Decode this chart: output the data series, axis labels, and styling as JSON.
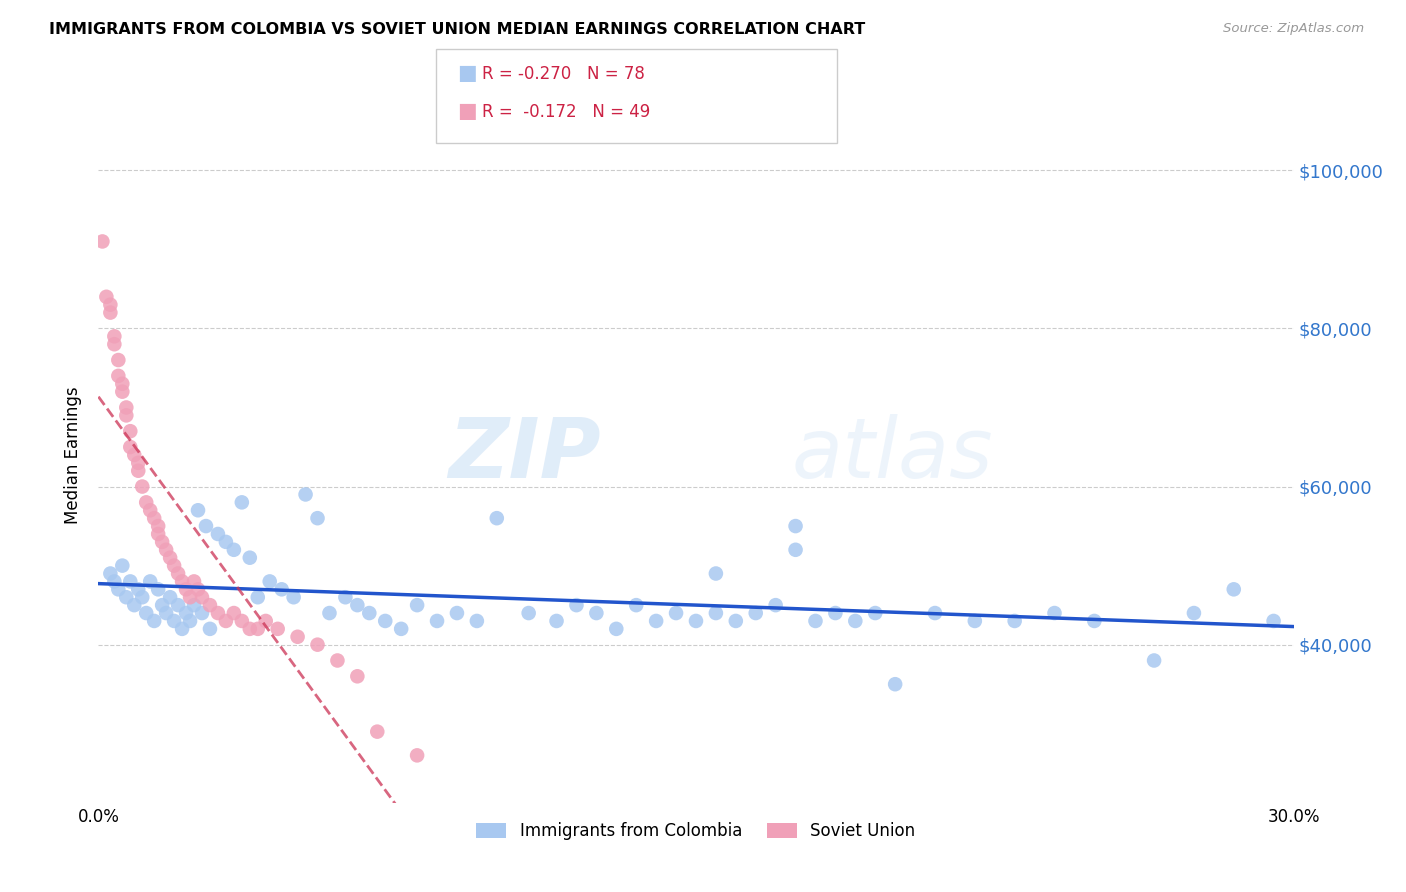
{
  "title": "IMMIGRANTS FROM COLOMBIA VS SOVIET UNION MEDIAN EARNINGS CORRELATION CHART",
  "source": "Source: ZipAtlas.com",
  "ylabel": "Median Earnings",
  "yticks": [
    40000,
    60000,
    80000,
    100000
  ],
  "xlim": [
    0.0,
    0.3
  ],
  "ylim": [
    20000,
    108000
  ],
  "watermark_zip": "ZIP",
  "watermark_atlas": "atlas",
  "legend_r_colombia": "R = -0.270",
  "legend_n_colombia": "N = 78",
  "legend_r_soviet": "R =  -0.172",
  "legend_n_soviet": "N = 49",
  "colombia_color": "#a8c8f0",
  "soviet_color": "#f0a0b8",
  "colombia_line_color": "#2255cc",
  "soviet_line_color": "#cc3355",
  "colombia_points_x": [
    0.003,
    0.004,
    0.005,
    0.006,
    0.007,
    0.008,
    0.009,
    0.01,
    0.011,
    0.012,
    0.013,
    0.014,
    0.015,
    0.016,
    0.017,
    0.018,
    0.019,
    0.02,
    0.021,
    0.022,
    0.023,
    0.024,
    0.025,
    0.026,
    0.027,
    0.028,
    0.03,
    0.032,
    0.034,
    0.036,
    0.038,
    0.04,
    0.043,
    0.046,
    0.049,
    0.052,
    0.055,
    0.058,
    0.062,
    0.065,
    0.068,
    0.072,
    0.076,
    0.08,
    0.085,
    0.09,
    0.095,
    0.1,
    0.108,
    0.115,
    0.12,
    0.125,
    0.13,
    0.135,
    0.14,
    0.145,
    0.15,
    0.155,
    0.16,
    0.165,
    0.17,
    0.175,
    0.18,
    0.185,
    0.19,
    0.195,
    0.2,
    0.21,
    0.22,
    0.23,
    0.24,
    0.25,
    0.265,
    0.275,
    0.285,
    0.295,
    0.175,
    0.155
  ],
  "colombia_points_y": [
    49000,
    48000,
    47000,
    50000,
    46000,
    48000,
    45000,
    47000,
    46000,
    44000,
    48000,
    43000,
    47000,
    45000,
    44000,
    46000,
    43000,
    45000,
    42000,
    44000,
    43000,
    45000,
    57000,
    44000,
    55000,
    42000,
    54000,
    53000,
    52000,
    58000,
    51000,
    46000,
    48000,
    47000,
    46000,
    59000,
    56000,
    44000,
    46000,
    45000,
    44000,
    43000,
    42000,
    45000,
    43000,
    44000,
    43000,
    56000,
    44000,
    43000,
    45000,
    44000,
    42000,
    45000,
    43000,
    44000,
    43000,
    44000,
    43000,
    44000,
    45000,
    55000,
    43000,
    44000,
    43000,
    44000,
    35000,
    44000,
    43000,
    43000,
    44000,
    43000,
    38000,
    44000,
    47000,
    43000,
    52000,
    49000
  ],
  "soviet_points_x": [
    0.001,
    0.002,
    0.003,
    0.003,
    0.004,
    0.004,
    0.005,
    0.005,
    0.006,
    0.006,
    0.007,
    0.007,
    0.008,
    0.008,
    0.009,
    0.01,
    0.01,
    0.011,
    0.012,
    0.013,
    0.014,
    0.015,
    0.015,
    0.016,
    0.017,
    0.018,
    0.019,
    0.02,
    0.021,
    0.022,
    0.023,
    0.024,
    0.025,
    0.026,
    0.028,
    0.03,
    0.032,
    0.034,
    0.036,
    0.038,
    0.04,
    0.042,
    0.045,
    0.05,
    0.055,
    0.06,
    0.065,
    0.07,
    0.08
  ],
  "soviet_points_y": [
    91000,
    84000,
    83000,
    82000,
    79000,
    78000,
    76000,
    74000,
    73000,
    72000,
    70000,
    69000,
    67000,
    65000,
    64000,
    63000,
    62000,
    60000,
    58000,
    57000,
    56000,
    55000,
    54000,
    53000,
    52000,
    51000,
    50000,
    49000,
    48000,
    47000,
    46000,
    48000,
    47000,
    46000,
    45000,
    44000,
    43000,
    44000,
    43000,
    42000,
    42000,
    43000,
    42000,
    41000,
    40000,
    38000,
    36000,
    29000,
    26000
  ]
}
